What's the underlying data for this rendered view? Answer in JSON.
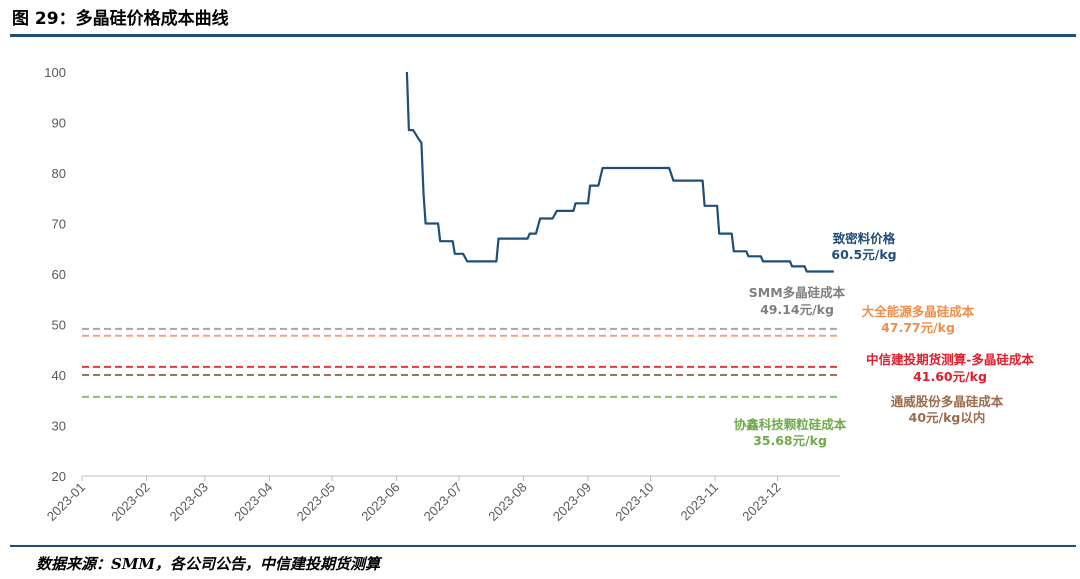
{
  "figure_title": "图 29：多晶硅价格成本曲线",
  "source_note": "数据来源：SMM，各公司公告，中信建投期货测算",
  "chart_data": {
    "type": "line",
    "title": "",
    "xlabel": "",
    "ylabel": "",
    "ylim": [
      20,
      100
    ],
    "y_ticks": [
      20,
      30,
      40,
      50,
      60,
      70,
      80,
      90,
      100
    ],
    "x_ticks": [
      "2023-01",
      "2023-02",
      "2023-03",
      "2023-04",
      "2023-05",
      "2023-06",
      "2023-07",
      "2023-08",
      "2023-09",
      "2023-10",
      "2023-11",
      "2023-12"
    ],
    "grid": false,
    "price_series": {
      "name": "致密料价格",
      "end_label": "60.5元/kg",
      "color": "#1f4e79",
      "points": [
        [
          "2023-06-06",
          100
        ],
        [
          "2023-06-07",
          88.5
        ],
        [
          "2023-06-09",
          88.5
        ],
        [
          "2023-06-12",
          86.5
        ],
        [
          "2023-06-13",
          86
        ],
        [
          "2023-06-14",
          76
        ],
        [
          "2023-06-15",
          70
        ],
        [
          "2023-06-21",
          70
        ],
        [
          "2023-06-22",
          66.5
        ],
        [
          "2023-06-28",
          66.5
        ],
        [
          "2023-06-29",
          64
        ],
        [
          "2023-07-03",
          64
        ],
        [
          "2023-07-05",
          62.5
        ],
        [
          "2023-07-19",
          62.5
        ],
        [
          "2023-07-20",
          67
        ],
        [
          "2023-08-03",
          67
        ],
        [
          "2023-08-04",
          68
        ],
        [
          "2023-08-07",
          68
        ],
        [
          "2023-08-09",
          71
        ],
        [
          "2023-08-15",
          71
        ],
        [
          "2023-08-17",
          72.5
        ],
        [
          "2023-08-25",
          72.5
        ],
        [
          "2023-08-26",
          74
        ],
        [
          "2023-09-01",
          74
        ],
        [
          "2023-09-02",
          77.5
        ],
        [
          "2023-09-06",
          77.5
        ],
        [
          "2023-09-08",
          81
        ],
        [
          "2023-10-10",
          81
        ],
        [
          "2023-10-12",
          78.5
        ],
        [
          "2023-10-26",
          78.5
        ],
        [
          "2023-10-27",
          73.5
        ],
        [
          "2023-11-02",
          73.5
        ],
        [
          "2023-11-03",
          68
        ],
        [
          "2023-11-09",
          68
        ],
        [
          "2023-11-10",
          64.5
        ],
        [
          "2023-11-16",
          64.5
        ],
        [
          "2023-11-17",
          63.5
        ],
        [
          "2023-11-23",
          63.5
        ],
        [
          "2023-11-24",
          62.5
        ],
        [
          "2023-12-07",
          62.5
        ],
        [
          "2023-12-08",
          61.5
        ],
        [
          "2023-12-14",
          61.5
        ],
        [
          "2023-12-15",
          60.5
        ],
        [
          "2023-12-28",
          60.5
        ]
      ]
    },
    "cost_lines": [
      {
        "name": "SMM多晶硅成本",
        "value_label": "49.14元/kg",
        "value": 49.14,
        "color": "#a6a6a6",
        "label_color": "#7f7f7f"
      },
      {
        "name": "大全能源多晶硅成本",
        "value_label": "47.77元/kg",
        "value": 47.77,
        "color": "#f4a582",
        "label_color": "#f28e4b"
      },
      {
        "name": "中信建投期货测算-多晶硅成本",
        "value_label": "41.60元/kg",
        "value": 41.6,
        "color": "#e03c3c",
        "label_color": "#e01f2d"
      },
      {
        "name": "通威股份多晶硅成本",
        "value_label": "40元/kg以内",
        "value": 40,
        "color": "#a0735a",
        "label_color": "#9c6b4e"
      },
      {
        "name": "协鑫科技颗粒硅成本",
        "value_label": "35.68元/kg",
        "value": 35.68,
        "color": "#8cc06b",
        "label_color": "#6fab4a"
      }
    ]
  }
}
